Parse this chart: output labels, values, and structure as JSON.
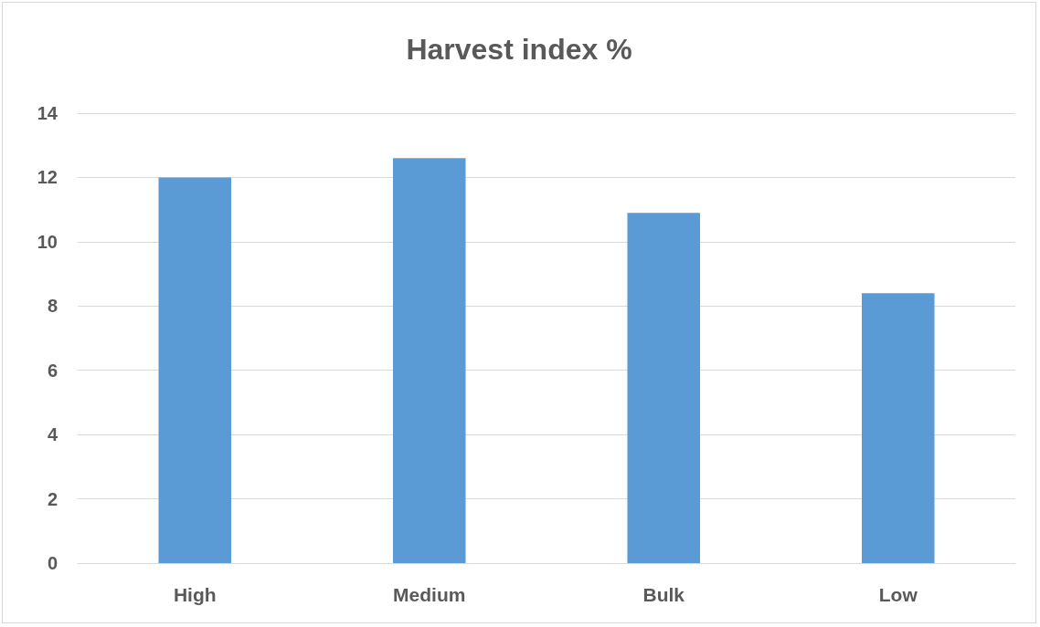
{
  "chart_data": {
    "type": "bar",
    "title": "Harvest index %",
    "categories": [
      "High",
      "Medium",
      "Bulk",
      "Low"
    ],
    "values": [
      12.0,
      12.6,
      10.9,
      8.4
    ],
    "color": "#5b9bd5",
    "ylim": [
      0,
      14
    ],
    "yticks": [
      0,
      2,
      4,
      6,
      8,
      10,
      12,
      14
    ],
    "grid": "y"
  }
}
